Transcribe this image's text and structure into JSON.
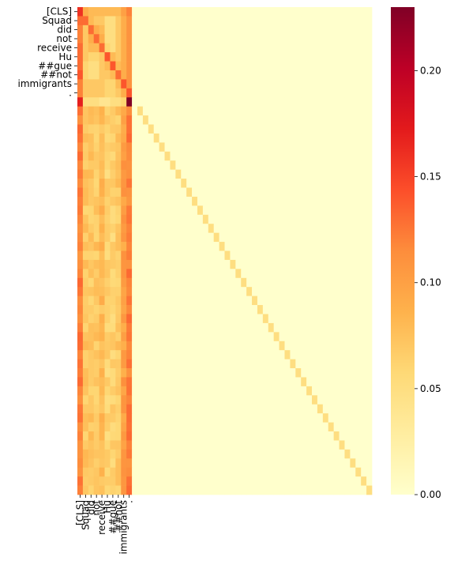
{
  "chart_data": {
    "type": "heatmap",
    "title": "",
    "xlabel": "",
    "ylabel": "",
    "tokens": [
      "[CLS]",
      "Squad",
      "did",
      "not",
      "receive",
      "Hu",
      "##gue",
      "##not",
      "immigrants",
      "."
    ],
    "n_rows": 54,
    "n_cols": 54,
    "colormap": "YlOrRd",
    "value_range": [
      0.0,
      0.23
    ],
    "colorbar_ticks": [
      "0.00",
      "0.05",
      "0.10",
      "0.15",
      "0.20"
    ],
    "colorbar_tick_values": [
      0.0,
      0.05,
      0.1,
      0.15,
      0.2
    ],
    "token_block": [
      [
        0.16,
        0.09,
        0.08,
        0.08,
        0.08,
        0.08,
        0.08,
        0.08,
        0.1,
        0.12
      ],
      [
        0.13,
        0.13,
        0.08,
        0.07,
        0.07,
        0.05,
        0.05,
        0.07,
        0.09,
        0.11
      ],
      [
        0.12,
        0.07,
        0.13,
        0.09,
        0.08,
        0.05,
        0.05,
        0.07,
        0.09,
        0.11
      ],
      [
        0.12,
        0.07,
        0.09,
        0.13,
        0.09,
        0.05,
        0.05,
        0.07,
        0.09,
        0.11
      ],
      [
        0.13,
        0.07,
        0.08,
        0.08,
        0.13,
        0.06,
        0.05,
        0.07,
        0.09,
        0.11
      ],
      [
        0.13,
        0.07,
        0.06,
        0.06,
        0.07,
        0.14,
        0.08,
        0.07,
        0.09,
        0.11
      ],
      [
        0.13,
        0.06,
        0.05,
        0.05,
        0.07,
        0.08,
        0.14,
        0.08,
        0.09,
        0.11
      ],
      [
        0.14,
        0.06,
        0.05,
        0.05,
        0.07,
        0.07,
        0.08,
        0.13,
        0.09,
        0.11
      ],
      [
        0.12,
        0.07,
        0.07,
        0.07,
        0.07,
        0.06,
        0.06,
        0.08,
        0.14,
        0.11
      ],
      [
        0.12,
        0.07,
        0.07,
        0.07,
        0.07,
        0.06,
        0.06,
        0.07,
        0.09,
        0.14
      ]
    ],
    "sep_row": [
      0.17,
      0.05,
      0.05,
      0.05,
      0.04,
      0.04,
      0.05,
      0.05,
      0.06,
      0.23
    ],
    "padding_diagonal_value": 0.05,
    "padding_column_profile": [
      0.12,
      0.07,
      0.07,
      0.07,
      0.08,
      0.06,
      0.06,
      0.07,
      0.1,
      0.12
    ]
  }
}
